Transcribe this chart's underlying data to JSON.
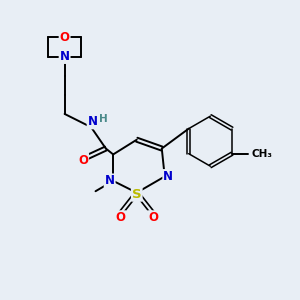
{
  "background_color": "#e8eef5",
  "atom_colors": {
    "C": "#000000",
    "N": "#0000cc",
    "O": "#ff0000",
    "S": "#bbbb00",
    "H": "#4a8a8a"
  },
  "bond_color": "#000000",
  "figsize": [
    3.0,
    3.0
  ],
  "dpi": 100
}
